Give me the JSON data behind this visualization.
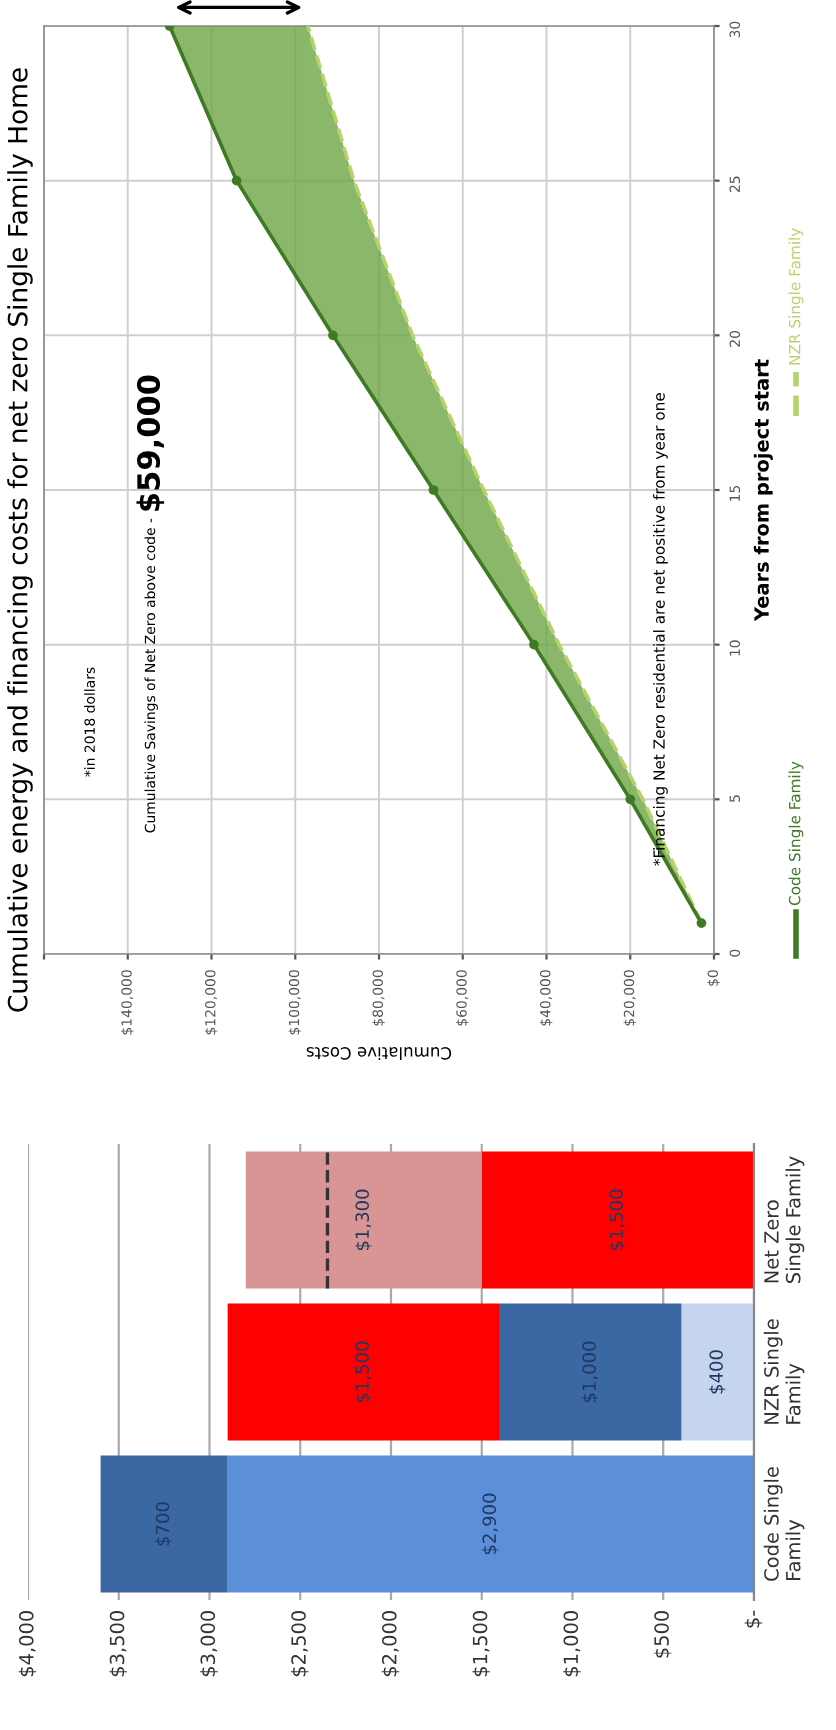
{
  "chart_data": [
    {
      "type": "line",
      "title": "Cumulative energy and financing costs for net zero Single Family Home",
      "xlabel": "Cumulative Costs",
      "ylabel": "Years from project start",
      "orientation": "horizontal",
      "annotations": [
        "*in 2018 dollars",
        "Cumulative Savings of Net Zero above code -",
        "$59,000",
        "*Financing Net Zero residential are net positive from year one"
      ],
      "x": [
        1,
        5,
        10,
        15,
        20,
        25,
        30
      ],
      "series": [
        {
          "name": "Code Single Family",
          "color": "#3f7a24",
          "values": [
            3000,
            20000,
            43000,
            67000,
            91000,
            114000,
            130000
          ],
          "line_style": "solid",
          "marker": "circle"
        },
        {
          "name": "NZR Single Family",
          "color": "#b6d36a",
          "values": [
            3000,
            17000,
            37000,
            55000,
            72000,
            86000,
            97000
          ],
          "line_style": "dashed",
          "marker": "none"
        }
      ],
      "xlim": [
        160000,
        0
      ],
      "xticks": [
        {
          "value": 0,
          "label": "$0"
        },
        {
          "value": 20000,
          "label": "$20,000"
        },
        {
          "value": 40000,
          "label": "$40,000"
        },
        {
          "value": 60000,
          "label": "$60,000"
        },
        {
          "value": 80000,
          "label": "$80,000"
        },
        {
          "value": 100000,
          "label": "$100,000"
        },
        {
          "value": 120000,
          "label": "$120,000"
        },
        {
          "value": 140000,
          "label": "$140,000"
        },
        {
          "value": 160000,
          "label": null
        }
      ],
      "ylim": [
        0,
        30
      ],
      "yticks": [
        0,
        5,
        10,
        15,
        20,
        25,
        30
      ],
      "grid": true,
      "legend": "bottom"
    },
    {
      "type": "bar",
      "orientation": "horizontal",
      "stacked": true,
      "categories": [
        "Net Zero\nSingle Family",
        "NZR Single\nFamily",
        "Code Single\nFamily"
      ],
      "series": [
        {
          "colors": [
            "#ff0000",
            "#c5d5ee",
            "#5b8fd9"
          ],
          "values": [
            1500,
            400,
            2900
          ]
        },
        {
          "colors": [
            "#d99594",
            "#3b67a3",
            "#3b67a3"
          ],
          "values": [
            1300,
            1000,
            700
          ]
        },
        {
          "colors": [
            "#ff0000",
            "#ff0000",
            "#ff0000"
          ],
          "values": [
            null,
            1500,
            null
          ]
        }
      ],
      "value_labels": [
        [
          "$1,500",
          "$400",
          "$2,900"
        ],
        [
          "$1,300",
          "$1,000",
          "$700"
        ],
        [
          null,
          "$1,500",
          null
        ]
      ],
      "ref_lines": [
        {
          "axis": "x",
          "value": 2350,
          "color": "#333333",
          "line_style": "dashed"
        }
      ],
      "xlim": [
        4000,
        0
      ],
      "xticks": [
        {
          "value": 0,
          "label": "$-"
        },
        {
          "value": 500,
          "label": "$500"
        },
        {
          "value": 1000,
          "label": "$1,000"
        },
        {
          "value": 1500,
          "label": "$1,500"
        },
        {
          "value": 2000,
          "label": "$2,000"
        },
        {
          "value": 2500,
          "label": "$2,500"
        },
        {
          "value": 3000,
          "label": "$3,000"
        },
        {
          "value": 3500,
          "label": "$3,500"
        },
        {
          "value": 4000,
          "label": "$4,000"
        }
      ],
      "grid": "x"
    }
  ]
}
